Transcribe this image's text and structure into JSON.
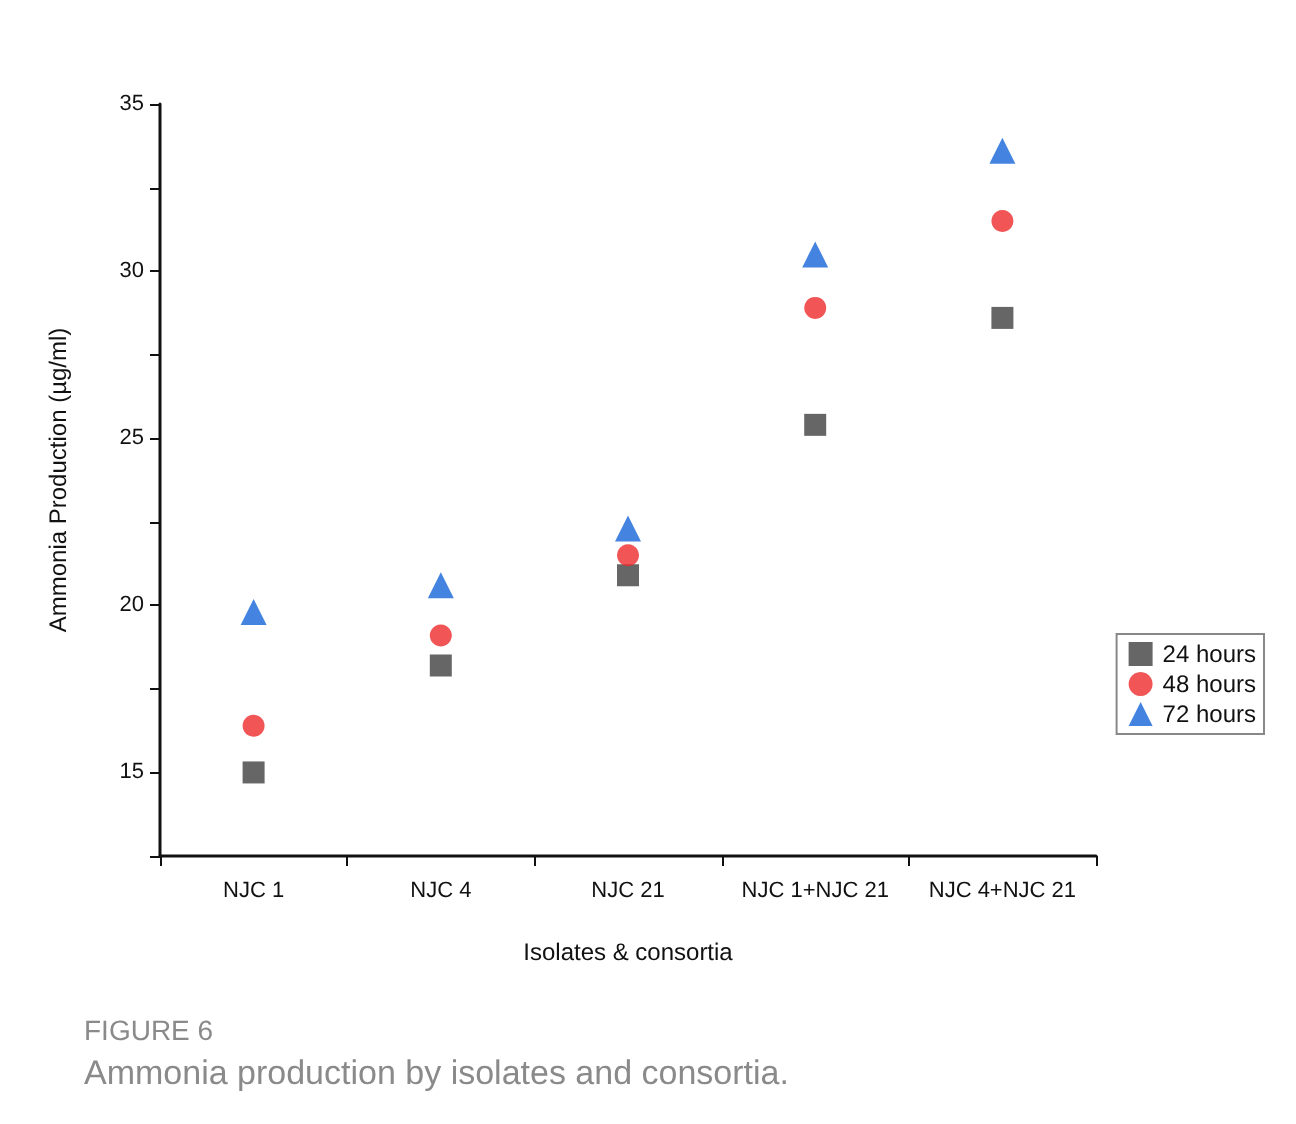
{
  "chart_data": {
    "type": "scatter",
    "xlabel": "Isolates & consortia",
    "ylabel": "Ammonia Production (µg/ml)",
    "categories": [
      "NJC 1",
      "NJC 4",
      "NJC 21",
      "NJC 1+NJC 21",
      "NJC 4+NJC 21"
    ],
    "series": [
      {
        "name": "24 hours",
        "color": "#404040",
        "marker": "square",
        "values": [
          15.0,
          18.2,
          20.9,
          25.4,
          28.6
        ]
      },
      {
        "name": "48 hours",
        "color": "#ee2a2a",
        "marker": "circle",
        "values": [
          16.4,
          19.1,
          21.5,
          28.9,
          31.5
        ]
      },
      {
        "name": "72 hours",
        "color": "#1565d8",
        "marker": "triangle",
        "values": [
          19.8,
          20.6,
          22.3,
          30.5,
          33.6
        ]
      }
    ],
    "ylim": [
      12.5,
      35
    ],
    "yticks": [
      {
        "value": 12.5,
        "label": null
      },
      15,
      {
        "value": 17.5,
        "label": null
      },
      20,
      {
        "value": 22.5,
        "label": null
      },
      25,
      {
        "value": 27.5,
        "label": null
      },
      30,
      {
        "value": 32.5,
        "label": null
      },
      35
    ],
    "grid": false,
    "legend": "right",
    "annotations": [
      "FIGURE 6",
      "Ammonia production by isolates and consortia."
    ]
  }
}
